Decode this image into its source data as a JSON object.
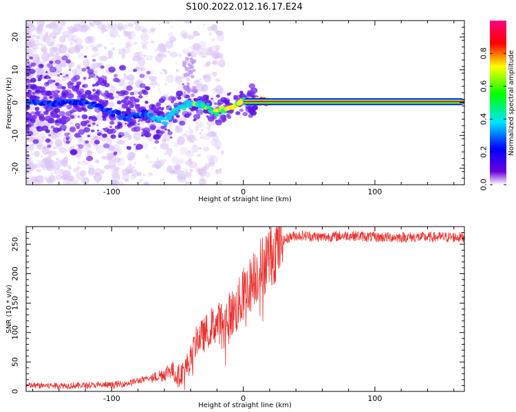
{
  "title": "S100.2022.012.16.17.E24",
  "colors": {
    "snr_line": "#e8322e",
    "spectrum_main": "#7b2ff2",
    "spectrum_faint": "#d9c2f7"
  },
  "chart_data": [
    {
      "type": "heatmap",
      "description_of_scale": "spectrogram",
      "xlabel": "Height of straight line (km)",
      "ylabel": "Frequency (Hz)",
      "xlim": [
        -165,
        168
      ],
      "ylim": [
        -25,
        25
      ],
      "x_ticks": [
        -100,
        0,
        100
      ],
      "y_ticks": [
        -20,
        -10,
        0,
        10,
        20
      ],
      "colorbar": {
        "label": "Normalized spectral amplitude",
        "range": [
          0,
          1
        ],
        "ticks": [
          0.0,
          0.2,
          0.4,
          0.6,
          0.8
        ],
        "colormap": [
          "#ffffff",
          "#6a00d8",
          "#0000ff",
          "#00e5ff",
          "#00ff00",
          "#ffff00",
          "#ff0000",
          "#ff0080"
        ]
      },
      "ridge": {
        "x": [
          -165,
          -120,
          -90,
          -75,
          -60,
          -50,
          -40,
          -30,
          -20,
          -10,
          0,
          10,
          20,
          60,
          100,
          168
        ],
        "y": [
          0.2,
          0.0,
          -4.5,
          -3.5,
          -6,
          -2,
          0,
          -0.5,
          -3,
          -1,
          0.2,
          0.3,
          0.3,
          0.3,
          0.3,
          0.3
        ]
      },
      "strong_band": {
        "x_start": 0,
        "x_end": 168,
        "y": 0.3
      }
    },
    {
      "type": "line",
      "xlabel": "Height of straight line (km)",
      "ylabel": "SNR (10 * v/v)",
      "xlim": [
        -165,
        168
      ],
      "ylim": [
        0,
        280
      ],
      "x_ticks": [
        -100,
        0,
        100
      ],
      "y_ticks": [
        0,
        50,
        100,
        150,
        200,
        250
      ],
      "series": [
        {
          "x": [
            -165,
            -140,
            -120,
            -100,
            -90,
            -80,
            -70,
            -60,
            -55,
            -50,
            -45,
            -40,
            -35,
            -30,
            -25,
            -20,
            -15,
            -10,
            -5,
            0,
            5,
            10,
            15,
            20,
            25,
            30,
            35,
            40,
            50,
            60,
            80,
            100,
            120,
            140,
            168
          ],
          "y": [
            10,
            10,
            10,
            11,
            13,
            18,
            22,
            30,
            38,
            25,
            35,
            55,
            90,
            95,
            110,
            115,
            120,
            130,
            140,
            165,
            180,
            200,
            215,
            230,
            245,
            255,
            262,
            265,
            264,
            262,
            265,
            262,
            262,
            262,
            262
          ]
        }
      ]
    }
  ]
}
